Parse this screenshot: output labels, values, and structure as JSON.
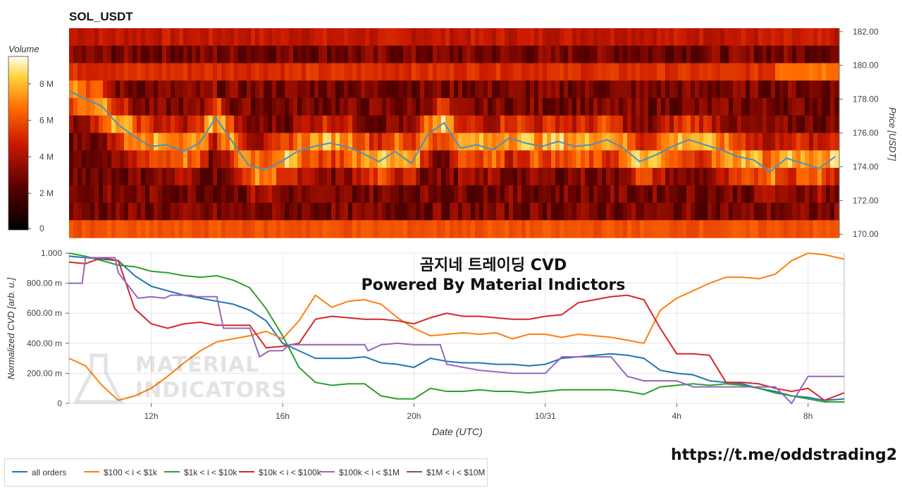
{
  "title": "SOL_USDT",
  "colorbar": {
    "title": "Volume",
    "ticks": [
      "0",
      "2 M",
      "4 M",
      "6 M",
      "8 M"
    ],
    "tick_values": [
      0,
      2,
      4,
      6,
      8
    ],
    "max": 9.5
  },
  "overlays": {
    "korean_title": "곰지네 트레이딩 CVD",
    "powered_by": "Powered By Material Indictors",
    "watermark_line1": "MATERIAL",
    "watermark_line2": "INDICATORS",
    "telegram": "https://t.me/oddstrading2"
  },
  "colors": {
    "all_orders": "#1f77b4",
    "r100_1k": "#ff7f0e",
    "r1k_10k": "#2ca02c",
    "r10k_100k": "#d62728",
    "r100k_1m": "#9467bd",
    "r1m_10m": "#8c564b"
  },
  "chart_data": [
    {
      "type": "heatmap",
      "title": "SOL_USDT",
      "ylabel": "Price [USDT]",
      "y_ticks": [
        "170.00",
        "172.00",
        "174.00",
        "176.00",
        "178.00",
        "180.00",
        "182.00"
      ],
      "y_tick_values": [
        170,
        172,
        174,
        176,
        178,
        180,
        182
      ],
      "ylim": [
        169.8,
        182.2
      ],
      "price_line": {
        "name": "price",
        "color": "#4a90c2",
        "x": [
          9.5,
          10,
          10.5,
          11,
          11.5,
          12,
          12.5,
          13,
          13.5,
          14,
          14.5,
          15,
          15.5,
          16,
          16.5,
          17,
          17.5,
          18,
          18.5,
          19,
          19.5,
          20,
          20.5,
          21,
          21.5,
          22,
          22.5,
          23,
          23.5,
          24,
          24.5,
          25,
          25.5,
          26,
          26.5,
          27,
          27.5,
          28,
          28.5,
          29,
          29.5,
          30,
          30.5,
          31,
          31.5,
          32,
          32.5,
          33
        ],
        "y": [
          178.5,
          178.0,
          177.6,
          176.5,
          175.8,
          175.2,
          175.3,
          174.9,
          175.4,
          176.9,
          175.5,
          174.1,
          173.8,
          174.3,
          174.9,
          175.2,
          175.4,
          175.2,
          174.8,
          174.3,
          174.9,
          174.2,
          175.9,
          176.6,
          175.1,
          175.3,
          175.0,
          175.7,
          175.4,
          175.2,
          175.5,
          175.2,
          175.3,
          175.6,
          175.1,
          174.3,
          174.7,
          175.2,
          175.6,
          175.3,
          175.0,
          174.6,
          174.4,
          173.7,
          174.5,
          174.2,
          173.9,
          174.6
        ]
      }
    },
    {
      "type": "line",
      "title": "",
      "xlabel": "Date (UTC)",
      "ylabel": "Normalized CVD [arb. u.]",
      "x_ticks": [
        "12h",
        "16h",
        "20h",
        "10/31",
        "4h",
        "8h"
      ],
      "x_tick_values": [
        12,
        16,
        20,
        24,
        28,
        32
      ],
      "xlim": [
        9.5,
        33.1
      ],
      "y_ticks": [
        "0",
        "200.00 m",
        "400.00 m",
        "600.00 m",
        "800.00 m",
        "1.000"
      ],
      "y_tick_values": [
        0,
        0.2,
        0.4,
        0.6,
        0.8,
        1.0
      ],
      "ylim": [
        0,
        1.0
      ],
      "legend": "bottom",
      "series": [
        {
          "name": "all orders",
          "color": "#1f77b4",
          "x": [
            9.5,
            10,
            10.5,
            11,
            11.5,
            12,
            12.5,
            13,
            13.5,
            14,
            14.5,
            15,
            15.5,
            16,
            16.5,
            17,
            17.5,
            18,
            18.5,
            19,
            19.5,
            20,
            20.5,
            21,
            21.5,
            22,
            22.5,
            23,
            23.5,
            24,
            24.5,
            25,
            25.5,
            26,
            26.5,
            27,
            27.5,
            28,
            28.5,
            29,
            29.5,
            30,
            30.5,
            31,
            31.5,
            32,
            32.5,
            33.1
          ],
          "y": [
            0.98,
            0.97,
            0.96,
            0.95,
            0.85,
            0.78,
            0.75,
            0.72,
            0.7,
            0.68,
            0.66,
            0.62,
            0.55,
            0.4,
            0.35,
            0.3,
            0.3,
            0.3,
            0.31,
            0.27,
            0.26,
            0.24,
            0.3,
            0.28,
            0.27,
            0.27,
            0.26,
            0.26,
            0.25,
            0.26,
            0.3,
            0.31,
            0.32,
            0.33,
            0.32,
            0.3,
            0.22,
            0.2,
            0.19,
            0.15,
            0.14,
            0.13,
            0.1,
            0.08,
            0.05,
            0.04,
            0.02,
            0.03
          ]
        },
        {
          "name": "$100 < i < $1k",
          "color": "#ff7f0e",
          "x": [
            9.5,
            10,
            10.5,
            11,
            11.5,
            12,
            12.5,
            13,
            13.5,
            14,
            14.5,
            15,
            15.5,
            16,
            16.5,
            17,
            17.5,
            18,
            18.5,
            19,
            19.5,
            20,
            20.5,
            21,
            21.5,
            22,
            22.5,
            23,
            23.5,
            24,
            24.5,
            25,
            25.5,
            26,
            26.5,
            27,
            27.5,
            28,
            28.5,
            29,
            29.5,
            30,
            30.5,
            31,
            31.5,
            32,
            32.5,
            33.1
          ],
          "y": [
            0.3,
            0.25,
            0.12,
            0.02,
            0.05,
            0.1,
            0.18,
            0.27,
            0.35,
            0.41,
            0.43,
            0.45,
            0.48,
            0.43,
            0.55,
            0.72,
            0.64,
            0.68,
            0.69,
            0.66,
            0.57,
            0.5,
            0.45,
            0.46,
            0.47,
            0.46,
            0.47,
            0.43,
            0.46,
            0.46,
            0.44,
            0.46,
            0.45,
            0.44,
            0.42,
            0.4,
            0.62,
            0.7,
            0.75,
            0.8,
            0.84,
            0.84,
            0.83,
            0.86,
            0.95,
            1.0,
            0.99,
            0.96
          ]
        },
        {
          "name": "$1k < i < $10k",
          "color": "#2ca02c",
          "x": [
            9.5,
            10,
            10.5,
            11,
            11.5,
            12,
            12.5,
            13,
            13.5,
            14,
            14.5,
            15,
            15.5,
            16,
            16.5,
            17,
            17.5,
            18,
            18.5,
            19,
            19.5,
            20,
            20.5,
            21,
            21.5,
            22,
            22.5,
            23,
            23.5,
            24,
            24.5,
            25,
            25.5,
            26,
            26.5,
            27,
            27.5,
            28,
            28.5,
            29,
            29.5,
            30,
            30.5,
            31,
            31.5,
            32,
            32.5,
            33.1
          ],
          "y": [
            1.0,
            0.98,
            0.95,
            0.92,
            0.91,
            0.88,
            0.87,
            0.85,
            0.84,
            0.85,
            0.82,
            0.77,
            0.63,
            0.45,
            0.24,
            0.14,
            0.12,
            0.13,
            0.13,
            0.05,
            0.03,
            0.03,
            0.1,
            0.08,
            0.08,
            0.09,
            0.08,
            0.08,
            0.07,
            0.08,
            0.09,
            0.09,
            0.09,
            0.09,
            0.08,
            0.06,
            0.11,
            0.12,
            0.13,
            0.12,
            0.13,
            0.12,
            0.1,
            0.07,
            0.05,
            0.03,
            0.01,
            0.01
          ]
        },
        {
          "name": "$10k < i < $100k",
          "color": "#d62728",
          "x": [
            9.5,
            10,
            10.5,
            11,
            11.5,
            12,
            12.5,
            13,
            13.5,
            14,
            14.5,
            15,
            15.5,
            16,
            16.5,
            17,
            17.5,
            18,
            18.5,
            19,
            19.5,
            20,
            20.5,
            21,
            21.5,
            22,
            22.5,
            23,
            23.5,
            24,
            24.5,
            25,
            25.5,
            26,
            26.5,
            27,
            27.5,
            28,
            28.5,
            29,
            29.5,
            30,
            30.5,
            31,
            31.5,
            32,
            32.5,
            33.1
          ],
          "y": [
            0.94,
            0.93,
            0.97,
            0.95,
            0.63,
            0.53,
            0.5,
            0.53,
            0.54,
            0.52,
            0.52,
            0.52,
            0.37,
            0.38,
            0.4,
            0.56,
            0.58,
            0.57,
            0.56,
            0.56,
            0.55,
            0.53,
            0.57,
            0.6,
            0.58,
            0.58,
            0.57,
            0.56,
            0.56,
            0.58,
            0.59,
            0.67,
            0.69,
            0.71,
            0.72,
            0.69,
            0.5,
            0.33,
            0.33,
            0.32,
            0.14,
            0.14,
            0.13,
            0.1,
            0.08,
            0.1,
            0.02,
            0.07
          ]
        },
        {
          "name": "$100k < i < $1M",
          "color": "#9467bd",
          "x": [
            9.5,
            9.9,
            10.0,
            10.9,
            11.0,
            11.6,
            12.0,
            12.4,
            12.6,
            13.2,
            13.4,
            14.0,
            14.2,
            15.0,
            15.3,
            15.6,
            16.0,
            16.2,
            17.0,
            18.5,
            18.6,
            18.9,
            19.0,
            19.5,
            20.0,
            20.8,
            21.0,
            21.5,
            22.0,
            22.5,
            23.0,
            24.0,
            24.5,
            25.0,
            25.5,
            26.0,
            26.5,
            27.0,
            28.0,
            28.5,
            29.0,
            29.5,
            30.0,
            30.3,
            30.7,
            31.0,
            31.5,
            32.0,
            33.1
          ],
          "y": [
            0.8,
            0.8,
            0.97,
            0.97,
            0.87,
            0.7,
            0.71,
            0.7,
            0.72,
            0.72,
            0.71,
            0.71,
            0.5,
            0.5,
            0.31,
            0.35,
            0.35,
            0.39,
            0.39,
            0.39,
            0.35,
            0.38,
            0.39,
            0.4,
            0.39,
            0.39,
            0.26,
            0.24,
            0.22,
            0.21,
            0.2,
            0.2,
            0.31,
            0.31,
            0.31,
            0.31,
            0.18,
            0.15,
            0.15,
            0.11,
            0.11,
            0.11,
            0.11,
            0.11,
            0.11,
            0.11,
            0.0,
            0.18,
            0.18
          ]
        },
        {
          "name": "$1M < i < $10M",
          "color": "#8c564b",
          "x": [],
          "y": []
        }
      ]
    }
  ]
}
